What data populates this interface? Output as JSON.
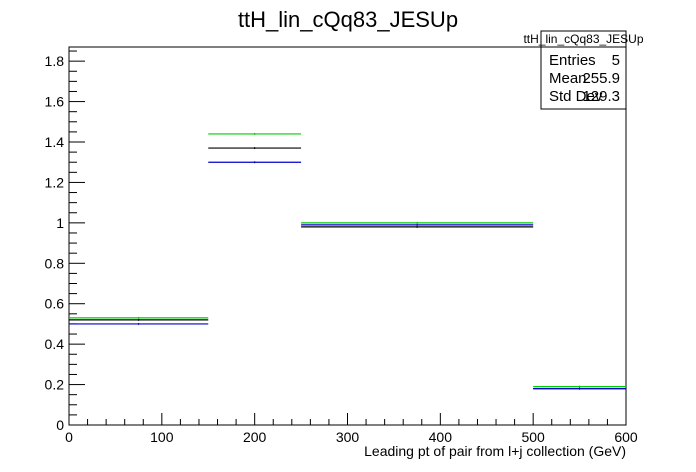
{
  "chart_data": {
    "type": "histogram",
    "title": "ttH_lin_cQq83_JESUp",
    "xlabel": "Leading pt of pair from l+j collection (GeV)",
    "ylabel": "",
    "xlim": [
      0,
      600
    ],
    "ylim": [
      0,
      1.87
    ],
    "x_ticks": [
      0,
      100,
      200,
      300,
      400,
      500,
      600
    ],
    "y_ticks": [
      0,
      0.2,
      0.4,
      0.6,
      0.8,
      1,
      1.2,
      1.4,
      1.6,
      1.8
    ],
    "bin_edges": [
      0,
      150,
      250,
      500,
      600
    ],
    "series": [
      {
        "color": "#000000",
        "values": [
          0.52,
          1.37,
          0.98,
          0.18
        ]
      },
      {
        "color": "#00cc00",
        "values": [
          0.53,
          1.44,
          1.0,
          0.19
        ]
      },
      {
        "color": "#0000cc",
        "values": [
          0.5,
          1.3,
          0.99,
          0.18
        ]
      }
    ],
    "stats_box": {
      "header": "ttH_lin_cQq83_JESUp",
      "rows": [
        {
          "label": "Entries",
          "value": "5"
        },
        {
          "label": "Mean",
          "value": "255.9"
        },
        {
          "label": "Std Dev",
          "value": "129.3"
        }
      ]
    },
    "grid": false,
    "legend": "none"
  }
}
